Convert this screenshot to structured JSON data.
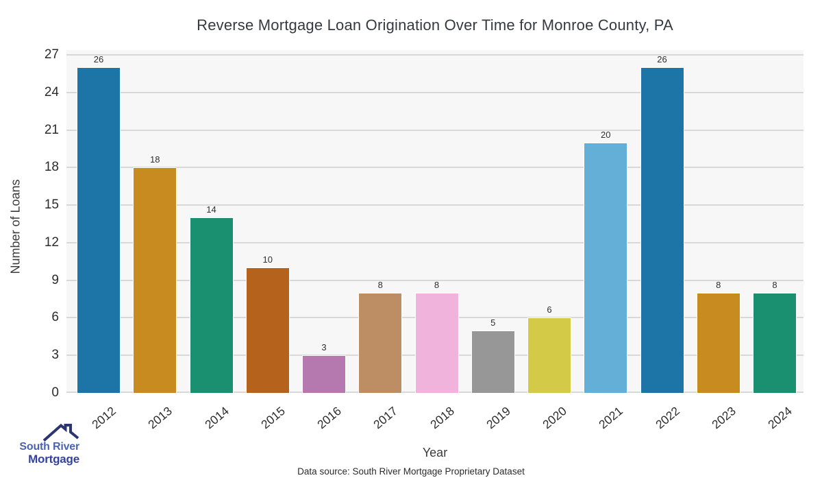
{
  "title": "Reverse Mortgage Loan Origination Over Time for Monroe County, PA",
  "chart_data": {
    "type": "bar",
    "categories": [
      "2012",
      "2013",
      "2014",
      "2015",
      "2016",
      "2017",
      "2018",
      "2019",
      "2020",
      "2021",
      "2022",
      "2023",
      "2024"
    ],
    "values": [
      26,
      18,
      14,
      10,
      3,
      8,
      8,
      5,
      6,
      20,
      26,
      8,
      8
    ],
    "bar_colors": [
      "#1d74a6",
      "#c78b1f",
      "#1a9070",
      "#b5621c",
      "#b579af",
      "#bd8e63",
      "#f0b4dc",
      "#979797",
      "#d3cb47",
      "#64afd7",
      "#1d74a6",
      "#c78b1f",
      "#1a9070"
    ],
    "title": "Reverse Mortgage Loan Origination Over Time for Monroe County, PA",
    "xlabel": "Year",
    "ylabel": "Number of Loans",
    "ylim": [
      0,
      27.4
    ],
    "yticks": [
      0,
      3,
      6,
      9,
      12,
      15,
      18,
      21,
      24,
      27
    ],
    "grid": "horizontal",
    "legend": "none",
    "value_labels": true,
    "plot_bg": "#f7f7f7",
    "grid_color": "#d8d8d8"
  },
  "footer": {
    "data_source": "Data source: South River Mortgage Proprietary Dataset"
  },
  "logo": {
    "line1": "South River",
    "line2": "Mortgage",
    "line1_color": "#4a63b2",
    "line2_color": "#3342a0",
    "roof_color": "#2b3671"
  }
}
